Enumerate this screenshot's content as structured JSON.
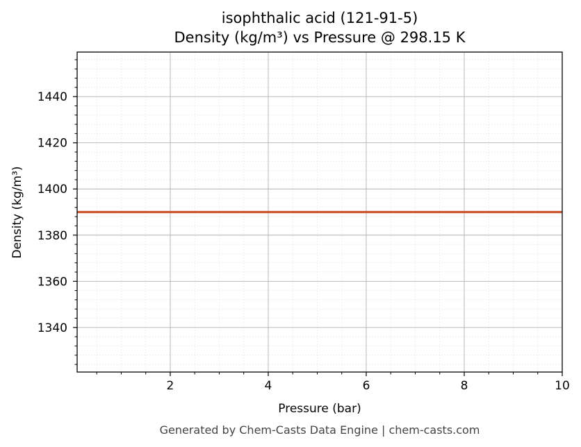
{
  "chart_data": {
    "type": "line",
    "title": "isophthalic acid (121-91-5)",
    "subtitle": "Density (kg/m³) vs Pressure @ 298.15 K",
    "xlabel": "Pressure (bar)",
    "ylabel": "Density (kg/m³)",
    "xlim": [
      0.1,
      10
    ],
    "ylim": [
      1320.7,
      1459.3
    ],
    "x_ticks": [
      2,
      4,
      6,
      8,
      10
    ],
    "y_ticks": [
      1340,
      1360,
      1380,
      1400,
      1420,
      1440
    ],
    "grid": true,
    "series": [
      {
        "color": "#c8562a",
        "x": [
          0.1,
          1,
          2,
          3,
          4,
          5,
          6,
          7,
          8,
          9,
          10
        ],
        "y": [
          1390,
          1390,
          1390,
          1390,
          1390,
          1390,
          1390,
          1390,
          1390,
          1390,
          1390
        ]
      }
    ]
  },
  "footer": "Generated by Chem-Casts Data Engine | chem-casts.com"
}
